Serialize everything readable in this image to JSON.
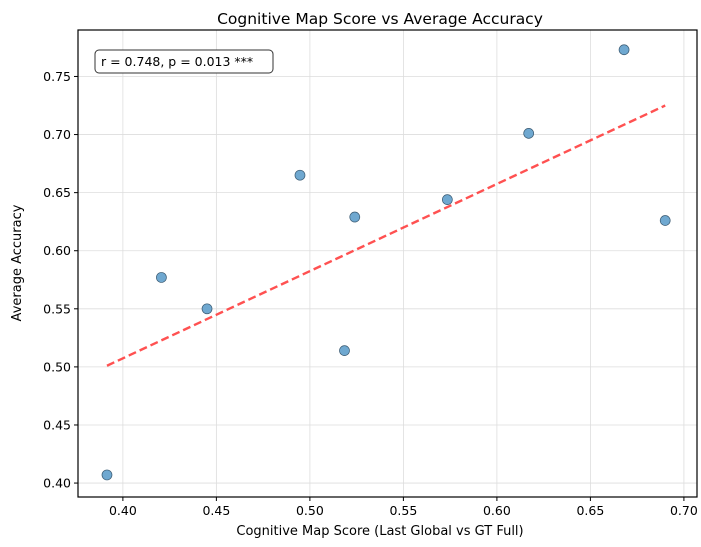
{
  "chart_data": {
    "type": "scatter",
    "title": "Cognitive Map Score vs Average Accuracy",
    "xlabel": "Cognitive Map Score (Last Global vs GT Full)",
    "ylabel": "Average Accuracy",
    "xlim": [
      0.376,
      0.707
    ],
    "ylim": [
      0.388,
      0.79
    ],
    "xticks": [
      "0.40",
      "0.45",
      "0.50",
      "0.55",
      "0.60",
      "0.65",
      "0.70"
    ],
    "yticks": [
      "0.40",
      "0.45",
      "0.50",
      "0.55",
      "0.60",
      "0.65",
      "0.70",
      "0.75"
    ],
    "grid": true,
    "points": [
      {
        "x": 0.3915,
        "y": 0.407
      },
      {
        "x": 0.4206,
        "y": 0.577
      },
      {
        "x": 0.445,
        "y": 0.55
      },
      {
        "x": 0.4947,
        "y": 0.665
      },
      {
        "x": 0.5185,
        "y": 0.514
      },
      {
        "x": 0.524,
        "y": 0.629
      },
      {
        "x": 0.5735,
        "y": 0.644
      },
      {
        "x": 0.617,
        "y": 0.701
      },
      {
        "x": 0.668,
        "y": 0.773
      },
      {
        "x": 0.69,
        "y": 0.626
      }
    ],
    "trendline": {
      "x": [
        0.3915,
        0.69
      ],
      "y": [
        0.501,
        0.725
      ]
    },
    "annotation": "r = 0.748, p = 0.013 ***",
    "colors": {
      "points": "#6fa8d0",
      "trendline": "#ff3333"
    }
  }
}
